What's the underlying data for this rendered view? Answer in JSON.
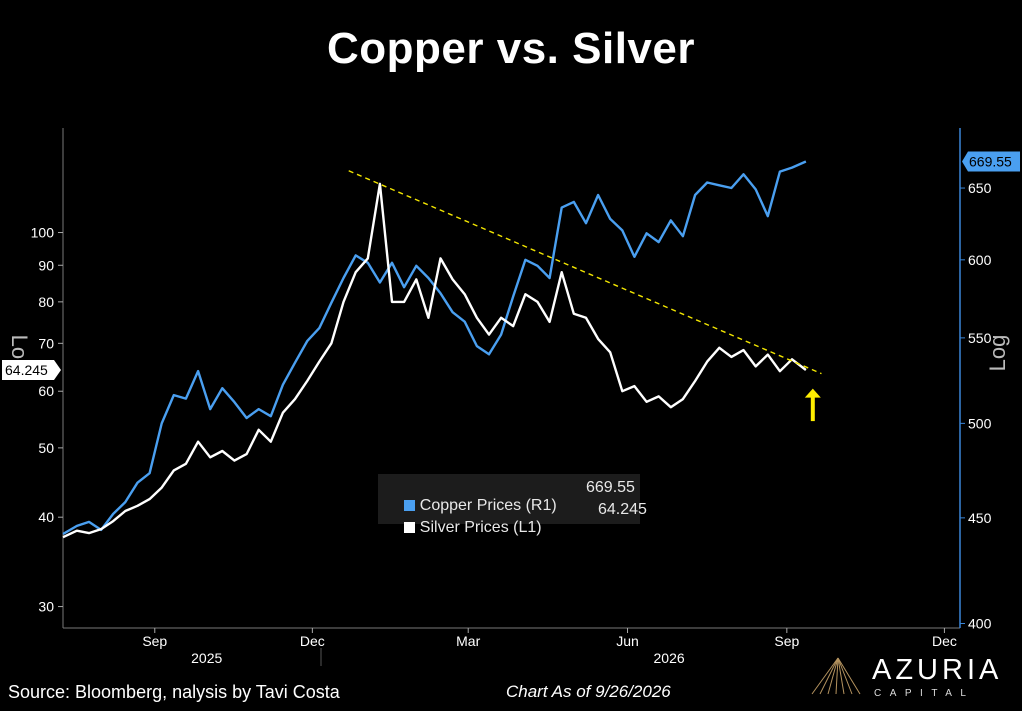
{
  "title": "Copper vs. Silver",
  "footer": {
    "source": "Source: Bloomberg, nalysis by Tavi Costa",
    "as_of": "Chart As of 9/26/2026",
    "brand_name": "AZURIA",
    "brand_sub": "CAPITAL"
  },
  "colors": {
    "copper": "#4a9ff0",
    "silver": "#ffffff",
    "trendline": "#f3e600",
    "arrow": "#ffee00",
    "axis": "#3a86d8",
    "background": "#000000"
  },
  "chart_data": {
    "type": "line",
    "x_axis": {
      "range": [
        "2025-07-24",
        "2026-12-24"
      ],
      "ticks": [
        {
          "label": "Sep",
          "date": "2025-09-15"
        },
        {
          "label": "Dec",
          "date": "2025-12-15"
        },
        {
          "label": "Mar",
          "date": "2026-03-15"
        },
        {
          "label": "Jun",
          "date": "2026-06-15"
        },
        {
          "label": "Sep",
          "date": "2026-09-15"
        },
        {
          "label": "Dec",
          "date": "2026-12-15"
        }
      ],
      "year_labels": [
        {
          "label": "2025",
          "date": "2025-10-15"
        },
        {
          "label": "2026",
          "date": "2026-07-09"
        }
      ]
    },
    "y_left": {
      "label": "Log",
      "scale": "log",
      "range": [
        28,
        140
      ],
      "ticks": [
        30,
        40,
        50,
        60,
        70,
        80,
        90,
        100
      ]
    },
    "y_right": {
      "label": "Log",
      "scale": "log",
      "range": [
        398,
        695
      ],
      "ticks": [
        400,
        450,
        500,
        550,
        600,
        650
      ]
    },
    "legend": [
      {
        "name": "Copper Prices (R1)",
        "value": "669.55"
      },
      {
        "name": "Silver Prices (L1)",
        "value": "64.245"
      }
    ],
    "last_value_tags": {
      "copper": "669.55",
      "silver": "64.245"
    },
    "series": [
      {
        "name": "Copper Prices (R1)",
        "axis": "right",
        "points": [
          [
            "2025-07-24",
            442
          ],
          [
            "2025-08-01",
            446
          ],
          [
            "2025-08-08",
            448
          ],
          [
            "2025-08-15",
            444
          ],
          [
            "2025-08-22",
            452
          ],
          [
            "2025-08-29",
            458
          ],
          [
            "2025-09-05",
            468
          ],
          [
            "2025-09-12",
            473
          ],
          [
            "2025-09-19",
            500
          ],
          [
            "2025-09-26",
            516
          ],
          [
            "2025-10-03",
            514
          ],
          [
            "2025-10-10",
            530
          ],
          [
            "2025-10-17",
            508
          ],
          [
            "2025-10-24",
            520
          ],
          [
            "2025-10-31",
            512
          ],
          [
            "2025-11-07",
            503
          ],
          [
            "2025-11-14",
            508
          ],
          [
            "2025-11-21",
            504
          ],
          [
            "2025-11-28",
            522
          ],
          [
            "2025-12-05",
            535
          ],
          [
            "2025-12-12",
            548
          ],
          [
            "2025-12-19",
            556
          ],
          [
            "2025-12-26",
            572
          ],
          [
            "2026-01-02",
            588
          ],
          [
            "2026-01-09",
            603
          ],
          [
            "2026-01-16",
            598
          ],
          [
            "2026-01-23",
            585
          ],
          [
            "2026-01-30",
            598
          ],
          [
            "2026-02-06",
            582
          ],
          [
            "2026-02-13",
            596
          ],
          [
            "2026-02-20",
            588
          ],
          [
            "2026-02-27",
            578
          ],
          [
            "2026-03-06",
            566
          ],
          [
            "2026-03-13",
            560
          ],
          [
            "2026-03-20",
            545
          ],
          [
            "2026-03-27",
            540
          ],
          [
            "2026-04-03",
            552
          ],
          [
            "2026-04-10",
            576
          ],
          [
            "2026-04-17",
            600
          ],
          [
            "2026-04-24",
            596
          ],
          [
            "2026-05-01",
            588
          ],
          [
            "2026-05-08",
            636
          ],
          [
            "2026-05-15",
            640
          ],
          [
            "2026-05-22",
            625
          ],
          [
            "2026-05-29",
            645
          ],
          [
            "2026-06-05",
            628
          ],
          [
            "2026-06-12",
            620
          ],
          [
            "2026-06-19",
            602
          ],
          [
            "2026-06-26",
            618
          ],
          [
            "2026-07-03",
            612
          ],
          [
            "2026-07-10",
            627
          ],
          [
            "2026-07-17",
            616
          ],
          [
            "2026-07-24",
            645
          ],
          [
            "2026-07-31",
            654
          ],
          [
            "2026-08-07",
            652
          ],
          [
            "2026-08-14",
            650
          ],
          [
            "2026-08-21",
            660
          ],
          [
            "2026-08-28",
            649
          ],
          [
            "2026-09-04",
            630
          ],
          [
            "2026-09-11",
            662
          ],
          [
            "2026-09-18",
            665
          ],
          [
            "2026-09-26",
            669.55
          ]
        ]
      },
      {
        "name": "Silver Prices (L1)",
        "axis": "left",
        "points": [
          [
            "2025-07-24",
            37.5
          ],
          [
            "2025-08-01",
            38.3
          ],
          [
            "2025-08-08",
            38.0
          ],
          [
            "2025-08-15",
            38.5
          ],
          [
            "2025-08-22",
            39.5
          ],
          [
            "2025-08-29",
            40.8
          ],
          [
            "2025-09-05",
            41.5
          ],
          [
            "2025-09-12",
            42.4
          ],
          [
            "2025-09-19",
            44.0
          ],
          [
            "2025-09-26",
            46.5
          ],
          [
            "2025-10-03",
            47.5
          ],
          [
            "2025-10-10",
            51.0
          ],
          [
            "2025-10-17",
            48.5
          ],
          [
            "2025-10-24",
            49.5
          ],
          [
            "2025-10-31",
            48.0
          ],
          [
            "2025-11-07",
            49.0
          ],
          [
            "2025-11-14",
            53.0
          ],
          [
            "2025-11-21",
            51.0
          ],
          [
            "2025-11-28",
            56.0
          ],
          [
            "2025-12-05",
            58.5
          ],
          [
            "2025-12-12",
            62.0
          ],
          [
            "2025-12-19",
            66.0
          ],
          [
            "2025-12-26",
            70.0
          ],
          [
            "2026-01-02",
            80.0
          ],
          [
            "2026-01-09",
            88.0
          ],
          [
            "2026-01-16",
            92.0
          ],
          [
            "2026-01-23",
            117.0
          ],
          [
            "2026-01-30",
            80.0
          ],
          [
            "2026-02-06",
            80.0
          ],
          [
            "2026-02-13",
            86.0
          ],
          [
            "2026-02-20",
            76.0
          ],
          [
            "2026-02-27",
            92.0
          ],
          [
            "2026-03-06",
            86.0
          ],
          [
            "2026-03-13",
            82.0
          ],
          [
            "2026-03-20",
            76.0
          ],
          [
            "2026-03-27",
            72.0
          ],
          [
            "2026-04-03",
            76.0
          ],
          [
            "2026-04-10",
            74.0
          ],
          [
            "2026-04-17",
            82.0
          ],
          [
            "2026-04-24",
            80.0
          ],
          [
            "2026-05-01",
            75.0
          ],
          [
            "2026-05-08",
            88.0
          ],
          [
            "2026-05-15",
            77.0
          ],
          [
            "2026-05-22",
            76.0
          ],
          [
            "2026-05-29",
            71.0
          ],
          [
            "2026-06-05",
            68.0
          ],
          [
            "2026-06-12",
            60.0
          ],
          [
            "2026-06-19",
            61.0
          ],
          [
            "2026-06-26",
            58.0
          ],
          [
            "2026-07-03",
            59.0
          ],
          [
            "2026-07-10",
            57.0
          ],
          [
            "2026-07-17",
            58.5
          ],
          [
            "2026-07-24",
            62.0
          ],
          [
            "2026-07-31",
            66.0
          ],
          [
            "2026-08-07",
            69.0
          ],
          [
            "2026-08-14",
            67.0
          ],
          [
            "2026-08-21",
            68.5
          ],
          [
            "2026-08-28",
            65.0
          ],
          [
            "2026-09-04",
            67.5
          ],
          [
            "2026-09-11",
            64.0
          ],
          [
            "2026-09-18",
            66.5
          ],
          [
            "2026-09-26",
            64.245
          ]
        ]
      }
    ],
    "trendline": {
      "axis": "left",
      "points": [
        [
          "2026-01-05",
          122
        ],
        [
          "2026-10-05",
          63.5
        ]
      ],
      "style": "dashed"
    },
    "annotation": {
      "type": "arrow",
      "direction": "up",
      "date": "2026-09-30",
      "axis": "left",
      "from": 54.5,
      "to": 60.5
    }
  }
}
